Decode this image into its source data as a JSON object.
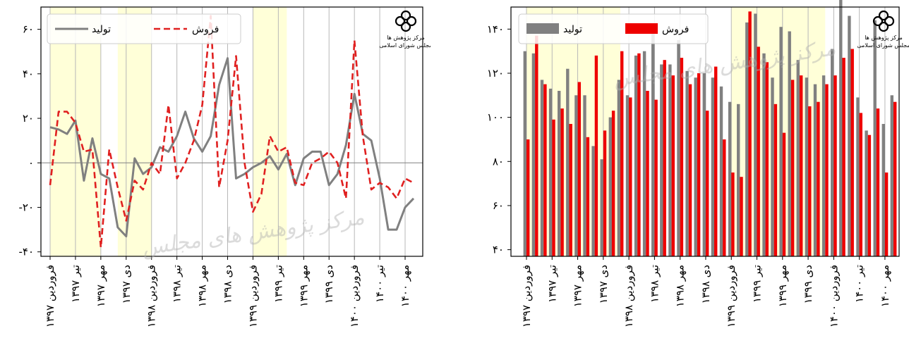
{
  "chart_data": [
    {
      "type": "line",
      "xlabels": [
        "فروردین ۱۳۹۷",
        "تیر ۱۳۹۷",
        "مهر ۱۳۹۷",
        "دی ۱۳۹۷",
        "فروردین ۱۳۹۸",
        "تیر ۱۳۹۸",
        "مهر ۱۳۹۸",
        "دی ۱۳۹۸",
        "فروردین ۱۳۹۹",
        "تیر ۱۳۹۹",
        "مهر ۱۳۹۹",
        "دی ۱۳۹۹",
        "فروردین ۱۴۰۰",
        "تیر ۱۴۰۰",
        "مهر ۱۴۰۰"
      ],
      "yticks": [
        -40,
        -20,
        0,
        20,
        40,
        60
      ],
      "ytick_labels": [
        "-۴۰",
        "-۲۰",
        "۰",
        "۲۰",
        "۴۰",
        "۶۰"
      ],
      "ylim": [
        -42,
        70
      ],
      "shaded_ranges": [
        [
          0,
          6
        ],
        [
          8,
          12
        ],
        [
          24,
          28
        ]
      ],
      "legend_position": "top-left",
      "series": [
        {
          "name": "تولید",
          "style": "solid",
          "color": "#808080",
          "values": [
            16,
            15,
            13,
            19,
            -8,
            11,
            -5,
            -7,
            -29,
            -33,
            2,
            -5,
            -2,
            7,
            5,
            12,
            23,
            11,
            5,
            12,
            35,
            47,
            -7,
            -5,
            -2,
            0,
            3,
            -3,
            4,
            -10,
            2,
            5,
            5,
            -10,
            -5,
            8,
            31,
            13,
            10,
            -7,
            -30,
            -30,
            -20,
            -16
          ]
        },
        {
          "name": "فروش",
          "style": "dashed",
          "color": "#e02020",
          "values": [
            -10,
            23,
            23,
            18,
            5,
            6,
            -38,
            6,
            -11,
            -26,
            -8,
            -12,
            0,
            -5,
            26,
            -7,
            0,
            10,
            26,
            66,
            -11,
            10,
            48,
            0,
            -22,
            -14,
            12,
            5,
            7,
            -9,
            -10,
            0,
            2,
            5,
            0,
            -16,
            55,
            12,
            -12,
            -9,
            -11,
            -16,
            -7,
            -9
          ]
        }
      ]
    },
    {
      "type": "bar",
      "xlabels": [
        "فروردین ۱۳۹۷",
        "تیر ۱۳۹۷",
        "مهر ۱۳۹۷",
        "دی ۱۳۹۷",
        "فروردین ۱۳۹۸",
        "تیر ۱۳۹۸",
        "مهر ۱۳۹۸",
        "دی ۱۳۹۸",
        "فروردین ۱۳۹۹",
        "تیر ۱۳۹۹",
        "مهر ۱۳۹۹",
        "دی ۱۳۹۹",
        "فروردین ۱۴۰۰",
        "تیر ۱۴۰۰",
        "مهر ۱۴۰۰"
      ],
      "yticks": [
        40,
        60,
        80,
        100,
        120,
        140
      ],
      "ytick_labels": [
        "۴۰",
        "۶۰",
        "۸۰",
        "۱۰۰",
        "۱۲۰",
        "۱۴۰"
      ],
      "ylim": [
        37,
        150
      ],
      "shaded_ranges": [
        [
          0,
          11
        ],
        [
          24,
          35
        ]
      ],
      "legend_position": "top-left",
      "series": [
        {
          "name": "تولید",
          "color": "#808080",
          "values": [
            130,
            129,
            117,
            113,
            112,
            122,
            110,
            110,
            87,
            81,
            100,
            117,
            110,
            128,
            130,
            139,
            124,
            124,
            135,
            121,
            118,
            120,
            118,
            114,
            107,
            106,
            143,
            147,
            129,
            118,
            141,
            139,
            126,
            118,
            115,
            119,
            131,
            159,
            146,
            109,
            94,
            144,
            97,
            110
          ]
        },
        {
          "name": "فروش",
          "color": "#ee0000",
          "values": [
            90,
            137,
            115,
            99,
            104,
            97,
            116,
            91,
            128,
            94,
            103,
            130,
            109,
            129,
            112,
            108,
            126,
            119,
            127,
            115,
            120,
            103,
            123,
            90,
            75,
            73,
            148,
            132,
            125,
            106,
            93,
            117,
            119,
            105,
            107,
            115,
            119,
            127,
            131,
            102,
            92,
            104,
            75,
            107
          ]
        }
      ]
    }
  ],
  "legend": {
    "production_label": "تولید",
    "sales_label": "فروش"
  },
  "watermark": {
    "text": "مرکز پژوهش های مجلس"
  },
  "logo": {
    "icon": "majlis-research-center-logo",
    "line1": "مرکز پژوهش ها",
    "line2": "مجلس شورای اسلامی"
  }
}
